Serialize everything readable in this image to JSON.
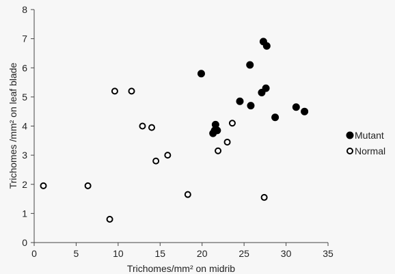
{
  "chart_data": {
    "type": "scatter",
    "title": "",
    "xlabel": "Trichomes/mm² on midrib",
    "ylabel": "Trichomes /mm² on leaf blade",
    "xlim": [
      0,
      35
    ],
    "ylim": [
      0,
      8
    ],
    "xticks": [
      "0",
      "5",
      "10",
      "15",
      "20",
      "25",
      "30",
      "35"
    ],
    "yticks": [
      "0",
      "1",
      "2",
      "3",
      "4",
      "5",
      "6",
      "7",
      "8"
    ],
    "grid": false,
    "legend_position": "right",
    "series": [
      {
        "name": "Mutant",
        "marker": "filled-circle",
        "color": "#000000",
        "points": [
          [
            19.9,
            5.8
          ],
          [
            25.7,
            6.1
          ],
          [
            27.3,
            6.9
          ],
          [
            27.7,
            6.75
          ],
          [
            27.6,
            5.3
          ],
          [
            27.1,
            5.15
          ],
          [
            24.5,
            4.85
          ],
          [
            25.8,
            4.7
          ],
          [
            21.6,
            4.05
          ],
          [
            21.5,
            3.85
          ],
          [
            21.8,
            3.85
          ],
          [
            21.3,
            3.75
          ],
          [
            28.7,
            4.3
          ],
          [
            31.2,
            4.65
          ],
          [
            32.2,
            4.5
          ]
        ]
      },
      {
        "name": "Normal",
        "marker": "open-circle",
        "color": "#000000",
        "points": [
          [
            1.1,
            1.95
          ],
          [
            6.4,
            1.95
          ],
          [
            9.0,
            0.8
          ],
          [
            9.6,
            5.2
          ],
          [
            11.6,
            5.2
          ],
          [
            12.9,
            4.0
          ],
          [
            14.0,
            3.95
          ],
          [
            14.5,
            2.8
          ],
          [
            15.9,
            3.0
          ],
          [
            18.3,
            1.65
          ],
          [
            21.9,
            3.15
          ],
          [
            23.0,
            3.45
          ],
          [
            23.6,
            4.1
          ],
          [
            27.4,
            1.55
          ]
        ]
      }
    ]
  }
}
